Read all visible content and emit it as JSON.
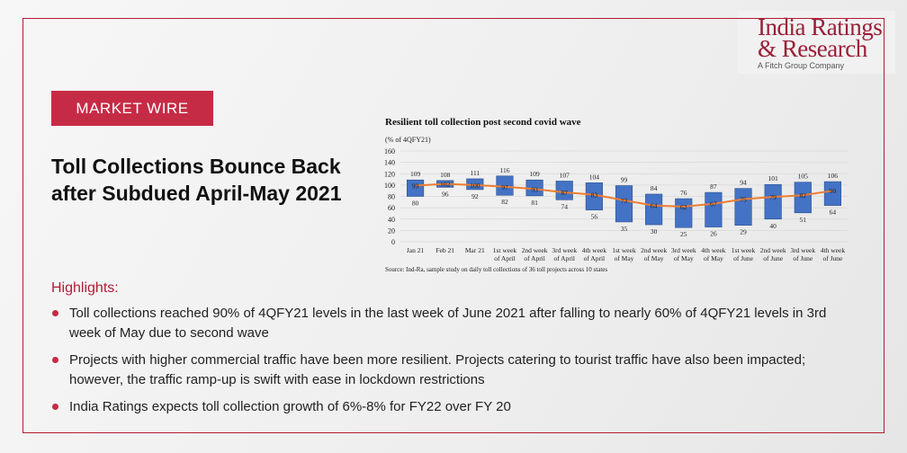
{
  "brand": {
    "line1": "India Ratings",
    "line2": "& Research",
    "sub": "A Fitch Group Company",
    "color": "#9a1f38"
  },
  "tag": "MARKET WIRE",
  "headline": "Toll Collections Bounce Back after Subdued April-May 2021",
  "highlights": {
    "title": "Highlights:",
    "items": [
      "Toll collections reached 90% of 4QFY21 levels in the last week of June 2021  after falling to nearly 60% of 4QFY21 levels in 3rd week of May due to second wave",
      "Projects with higher commercial traffic have been more resilient. Projects catering to tourist traffic have also been impacted; however, the traffic ramp-up is swift with ease in lockdown restrictions",
      "India Ratings expects toll collection growth of 6%-8% for FY22 over FY 20"
    ]
  },
  "chart_data": {
    "type": "bar",
    "title": "Resilient toll collection post second covid wave",
    "unit": "(% of 4QFY21)",
    "source": "Source: Ind-Ra, sample study on daily toll collections of 36 toll projects across 10 states",
    "categories": [
      [
        "Jan 21"
      ],
      [
        "Feb 21"
      ],
      [
        "Mar 21"
      ],
      [
        "1st week",
        "of April"
      ],
      [
        "2nd week",
        "of April"
      ],
      [
        "3rd week",
        "of April"
      ],
      [
        "4th week",
        "of April"
      ],
      [
        "1st week",
        "of May"
      ],
      [
        "2nd week",
        "of May"
      ],
      [
        "3rd week",
        "of May"
      ],
      [
        "4th week",
        "of May"
      ],
      [
        "1st week",
        "of June"
      ],
      [
        "2nd week",
        "of June"
      ],
      [
        "3rd week",
        "of June"
      ],
      [
        "4th week",
        "of June"
      ]
    ],
    "high": [
      109,
      108,
      111,
      116,
      109,
      107,
      104,
      99,
      84,
      76,
      87,
      94,
      101,
      105,
      106
    ],
    "low": [
      80,
      96,
      92,
      82,
      81,
      74,
      56,
      35,
      30,
      25,
      26,
      29,
      40,
      51,
      64
    ],
    "avg": [
      99,
      102,
      100,
      97,
      93,
      87,
      83,
      73,
      64,
      62,
      67,
      75,
      79,
      82,
      90
    ],
    "ylim": [
      0,
      160
    ],
    "yticks": [
      0,
      20,
      40,
      60,
      80,
      100,
      120,
      140,
      160
    ],
    "colors": {
      "bar": "#4472c4",
      "bar_edge": "#2f528f",
      "line": "#ed7d31",
      "grid": "#d9d9d9"
    }
  }
}
